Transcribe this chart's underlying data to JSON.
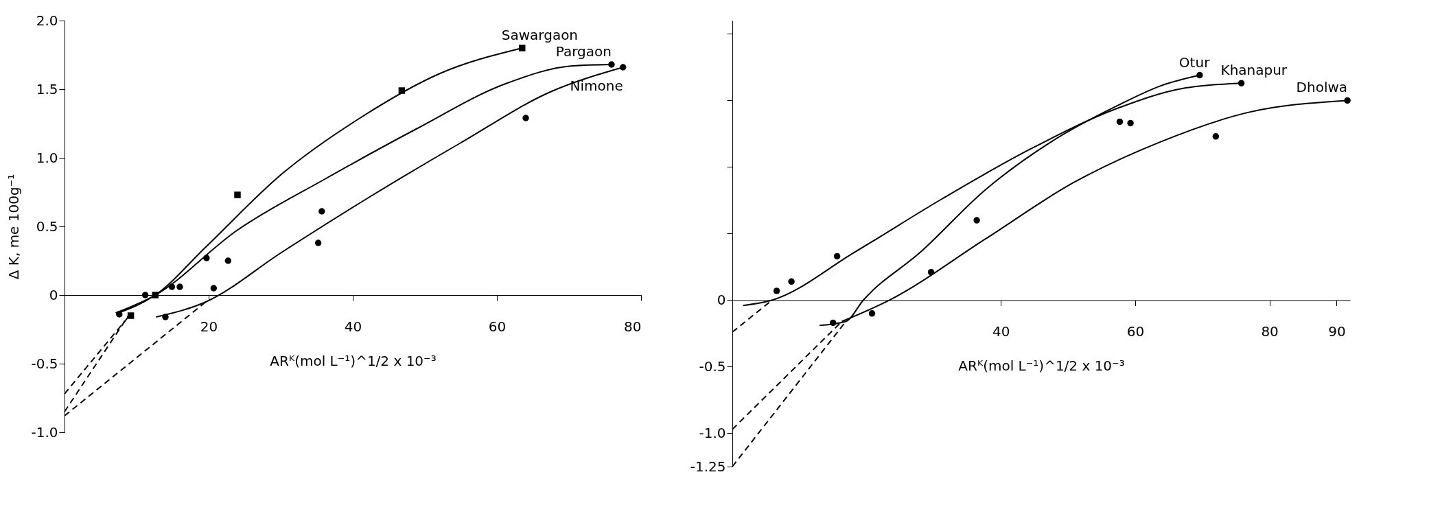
{
  "chart_data": [
    {
      "type": "line",
      "xlabel": "ARᴷ(mol L⁻¹)^1/2 x 10⁻³",
      "ylabel": "Δ K, me 100g⁻¹",
      "xlim": [
        0,
        80
      ],
      "ylim": [
        -1.0,
        2.0
      ],
      "xticks": [
        20,
        40,
        60,
        80
      ],
      "yticks": [
        {
          "value": -1.0,
          "label": "-1.0"
        },
        {
          "value": -0.5,
          "label": "-0.5"
        },
        0,
        {
          "value": 0.5,
          "label": "0.5"
        },
        {
          "value": 1.0,
          "label": "1.0"
        },
        {
          "value": 1.5,
          "label": "1.5"
        },
        {
          "value": 2.0,
          "label": "2.0"
        }
      ],
      "grid": false,
      "series": [
        {
          "name": "Sawargaon",
          "color": "#000000",
          "x": [
            7.5,
            12.6,
            19.6,
            30.1,
            41.3,
            51.9,
            63.5
          ],
          "values": [
            -0.13,
            0,
            0.35,
            0.88,
            1.3,
            1.61,
            1.8
          ]
        },
        {
          "name": "Pargaon",
          "color": "#000000",
          "x": [
            7.1,
            12.6,
            23.9,
            36.3,
            48.8,
            61.2,
            70.5,
            75.9
          ],
          "values": [
            -0.13,
            0,
            0.47,
            0.85,
            1.21,
            1.54,
            1.67,
            1.68
          ]
        },
        {
          "name": "Nimone",
          "color": "#000000",
          "x": [
            12.7,
            19.6,
            30.1,
            42.5,
            55,
            67.4,
            77.5
          ],
          "values": [
            -0.16,
            -0.05,
            0.31,
            0.72,
            1.11,
            1.48,
            1.66
          ]
        },
        {
          "type": "scatter",
          "marker": "square",
          "color": "#000000",
          "x": [
            9.2,
            12.6,
            24.0,
            46.8,
            63.5
          ],
          "values": [
            -0.15,
            0,
            0.73,
            1.49,
            1.8
          ]
        },
        {
          "type": "scatter",
          "marker": "circle",
          "color": "#000000",
          "x": [
            7.6,
            14.9,
            16.0,
            19.7,
            22.7,
            35.7,
            75.9
          ],
          "values": [
            -0.14,
            0.06,
            0.06,
            0.27,
            0.25,
            0.61,
            1.68
          ]
        },
        {
          "type": "scatter",
          "marker": "circle",
          "color": "#000000",
          "x": [
            11.2,
            14,
            20.7,
            35.2,
            64,
            77.5
          ],
          "values": [
            0,
            -0.16,
            0.05,
            0.38,
            1.29,
            1.66
          ]
        },
        {
          "type": "line",
          "line_style": "dashed",
          "color": "#000000",
          "x": [
            0,
            9
          ],
          "values": [
            -0.72,
            -0.15
          ]
        },
        {
          "type": "line",
          "line_style": "dashed",
          "color": "#000000",
          "x": [
            0,
            9
          ],
          "values": [
            -0.85,
            -0.14
          ]
        },
        {
          "type": "line",
          "line_style": "dashed",
          "color": "#000000",
          "x": [
            0,
            19.6
          ],
          "values": [
            -0.88,
            -0.05
          ]
        }
      ]
    },
    {
      "type": "line",
      "xlabel": "ARᴷ(mol L⁻¹)^1/2 x 10⁻³",
      "xlim": [
        0,
        92
      ],
      "ylim": [
        -1.25,
        2.1
      ],
      "xticks": [
        40,
        60,
        80,
        90
      ],
      "yticks": [
        -1.25,
        {
          "value": -1.0,
          "label": "-1.0"
        },
        -0.5,
        0,
        {
          "value": 0.5,
          "label": null
        },
        {
          "value": 1.0,
          "label": null
        },
        {
          "value": 1.5,
          "label": null
        },
        {
          "value": 2.0,
          "label": null
        }
      ],
      "grid": false,
      "series": [
        {
          "name": "Otur",
          "color": "#000000",
          "x": [
            13,
            16.9,
            19.5,
            28,
            37.7,
            47.5,
            57.3,
            63.8,
            69.6
          ],
          "values": [
            -0.19,
            -0.16,
            0,
            0.36,
            0.83,
            1.19,
            1.46,
            1.61,
            1.69
          ]
        },
        {
          "name": "Khanapur",
          "color": "#000000",
          "x": [
            1.6,
            5.9,
            18.2,
            31.2,
            44.2,
            57.3,
            67,
            75.8
          ],
          "values": [
            -0.04,
            0,
            0.36,
            0.76,
            1.13,
            1.44,
            1.59,
            1.63
          ]
        },
        {
          "name": "Dholwa",
          "color": "#000000",
          "x": [
            16.3,
            23.4,
            37.7,
            50.7,
            63.8,
            76.8,
            91.6
          ],
          "values": [
            -0.16,
            0,
            0.46,
            0.88,
            1.19,
            1.41,
            1.5
          ]
        },
        {
          "type": "scatter",
          "marker": "circle",
          "color": "#000000",
          "x": [
            36.4,
            57.7,
            69.6
          ],
          "values": [
            0.6,
            1.34,
            1.69
          ]
        },
        {
          "type": "scatter",
          "marker": "circle",
          "color": "#000000",
          "x": [
            6.6,
            8.8,
            15.6,
            75.8
          ],
          "values": [
            0.07,
            0.14,
            0.33,
            1.63
          ]
        },
        {
          "type": "scatter",
          "marker": "circle",
          "color": "#000000",
          "x": [
            15.0,
            20.8,
            29.6,
            59.3,
            72.0,
            91.6
          ],
          "values": [
            -0.17,
            -0.1,
            0.21,
            1.33,
            1.23,
            1.5
          ]
        },
        {
          "type": "line",
          "line_style": "dashed",
          "color": "#000000",
          "x": [
            0,
            5.9
          ],
          "values": [
            -0.24,
            0
          ]
        },
        {
          "type": "line",
          "line_style": "dashed",
          "color": "#000000",
          "x": [
            0,
            16.9
          ],
          "values": [
            -1.25,
            -0.16
          ]
        },
        {
          "type": "line",
          "line_style": "dashed",
          "color": "#000000",
          "x": [
            0,
            16.3
          ],
          "values": [
            -0.97,
            -0.16
          ]
        }
      ]
    }
  ]
}
